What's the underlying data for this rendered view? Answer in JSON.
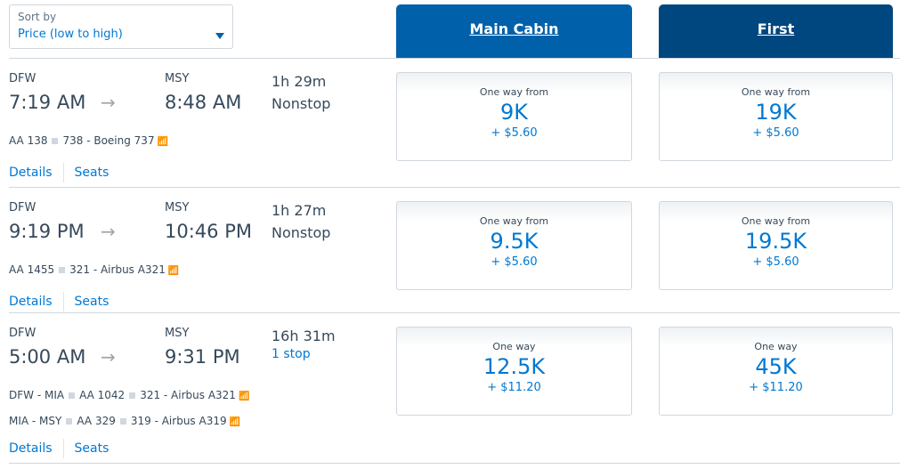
{
  "sort": {
    "label": "Sort by",
    "value": "Price (low to high)"
  },
  "cabins": {
    "main": "Main Cabin",
    "first": "First"
  },
  "links": {
    "details": "Details",
    "seats": "Seats"
  },
  "flights": [
    {
      "from": "DFW",
      "dep": "7:19 AM",
      "to": "MSY",
      "arr": "8:48 AM",
      "duration": "1h 29m",
      "stops": "Nonstop",
      "segments": [
        {
          "parts": [
            "AA 138",
            "738 - Boeing 737"
          ]
        }
      ],
      "main": {
        "label": "One way from",
        "points": "9K",
        "fee": "+ $5.60"
      },
      "first": {
        "label": "One way from",
        "points": "19K",
        "fee": "+ $5.60"
      }
    },
    {
      "from": "DFW",
      "dep": "9:19 PM",
      "to": "MSY",
      "arr": "10:46 PM",
      "duration": "1h 27m",
      "stops": "Nonstop",
      "segments": [
        {
          "parts": [
            "AA 1455",
            "321 - Airbus A321"
          ]
        }
      ],
      "main": {
        "label": "One way from",
        "points": "9.5K",
        "fee": "+ $5.60"
      },
      "first": {
        "label": "One way from",
        "points": "19.5K",
        "fee": "+ $5.60"
      }
    },
    {
      "from": "DFW",
      "dep": "5:00 AM",
      "to": "MSY",
      "arr": "9:31 PM",
      "duration": "16h 31m",
      "stops": "1 stop",
      "segments": [
        {
          "parts": [
            "DFW - MIA",
            "AA 1042",
            "321 - Airbus A321"
          ]
        },
        {
          "parts": [
            "MIA - MSY",
            "AA 329",
            "319 - Airbus A319"
          ]
        }
      ],
      "main": {
        "label": "One way",
        "points": "12.5K",
        "fee": "+ $11.20"
      },
      "first": {
        "label": "One way",
        "points": "45K",
        "fee": "+ $11.20"
      }
    }
  ]
}
